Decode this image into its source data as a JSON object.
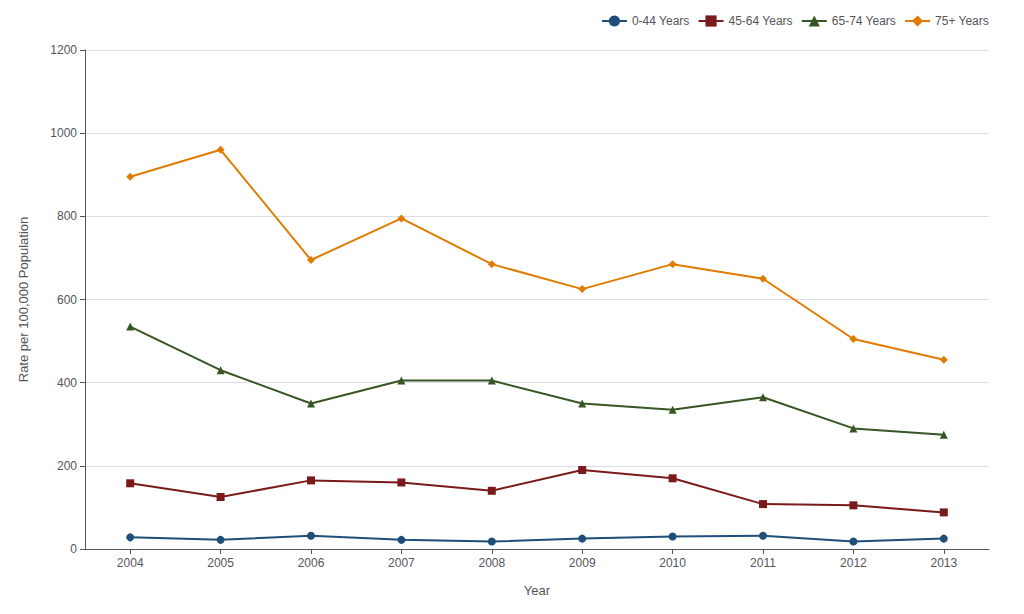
{
  "chart_data": {
    "type": "line",
    "xlabel": "Year",
    "ylabel": "Rate per 100,000 Population",
    "x": [
      2004,
      2005,
      2006,
      2007,
      2008,
      2009,
      2010,
      2011,
      2012,
      2013
    ],
    "series": [
      {
        "name": "0-44 Years",
        "color": "#1f4e79",
        "marker": "circle",
        "values": [
          28,
          22,
          32,
          22,
          18,
          25,
          30,
          32,
          18,
          25
        ]
      },
      {
        "name": "45-64 Years",
        "color": "#7b1a1a",
        "marker": "square",
        "values": [
          158,
          125,
          165,
          160,
          140,
          190,
          170,
          108,
          105,
          88
        ]
      },
      {
        "name": "65-74 Years",
        "color": "#375623",
        "marker": "triangle",
        "values": [
          535,
          430,
          350,
          405,
          405,
          350,
          335,
          365,
          290,
          275
        ]
      },
      {
        "name": "75+ Years",
        "color": "#e07b00",
        "marker": "diamond",
        "values": [
          895,
          960,
          695,
          795,
          685,
          625,
          685,
          650,
          505,
          455
        ]
      }
    ],
    "xlim": [
      2003.5,
      2013.5
    ],
    "xticks": [
      2004,
      2005,
      2006,
      2007,
      2008,
      2009,
      2010,
      2011,
      2012,
      2013
    ],
    "ylim": [
      0,
      1200
    ],
    "yticks": [
      0,
      200,
      400,
      600,
      800,
      1000,
      1200
    ],
    "grid": true,
    "legend": "upper right"
  }
}
